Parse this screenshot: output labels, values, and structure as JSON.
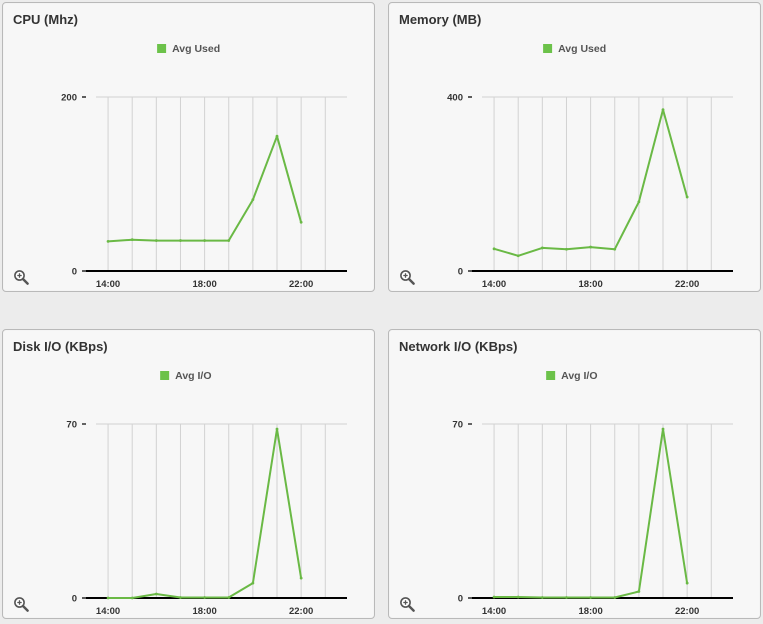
{
  "colors": {
    "series": "#6ab945",
    "legend_swatch": "#6cc24a",
    "grid": "#d2d2d2",
    "axis": "#000000"
  },
  "icons": {
    "zoom": "zoom-in-icon"
  },
  "chart_data": [
    {
      "type": "line",
      "title": "CPU (Mhz)",
      "x": [
        "14:00",
        "15:00",
        "16:00",
        "17:00",
        "18:00",
        "19:00",
        "20:00",
        "21:00",
        "22:00"
      ],
      "xticks": [
        "14:00",
        "18:00",
        "22:00"
      ],
      "xlim": [
        13.5,
        23.9
      ],
      "ylim": [
        0,
        200
      ],
      "yticks": [
        0,
        200
      ],
      "grid": true,
      "legend_position": "top-center",
      "series": [
        {
          "name": "Avg Used",
          "values": [
            34,
            36,
            35,
            35,
            35,
            35,
            82,
            155,
            56
          ]
        }
      ]
    },
    {
      "type": "line",
      "title": "Memory (MB)",
      "x": [
        "14:00",
        "15:00",
        "16:00",
        "17:00",
        "18:00",
        "19:00",
        "20:00",
        "21:00",
        "22:00"
      ],
      "xticks": [
        "14:00",
        "18:00",
        "22:00"
      ],
      "xlim": [
        13.5,
        23.9
      ],
      "ylim": [
        0,
        400
      ],
      "yticks": [
        0,
        400
      ],
      "grid": true,
      "legend_position": "top-center",
      "series": [
        {
          "name": "Avg Used",
          "values": [
            51,
            35,
            53,
            50,
            55,
            50,
            159,
            371,
            170
          ]
        }
      ]
    },
    {
      "type": "line",
      "title": "Disk I/O (KBps)",
      "x": [
        "14:00",
        "15:00",
        "16:00",
        "17:00",
        "18:00",
        "19:00",
        "20:00",
        "21:00",
        "22:00"
      ],
      "xticks": [
        "14:00",
        "18:00",
        "22:00"
      ],
      "xlim": [
        13.5,
        23.9
      ],
      "ylim": [
        0,
        70
      ],
      "yticks": [
        0,
        70
      ],
      "grid": true,
      "legend_position": "top-center",
      "series": [
        {
          "name": "Avg I/O",
          "values": [
            0,
            0,
            1.6,
            0.2,
            0.2,
            0.2,
            6,
            68,
            8
          ]
        }
      ]
    },
    {
      "type": "line",
      "title": "Network I/O (KBps)",
      "x": [
        "14:00",
        "15:00",
        "16:00",
        "17:00",
        "18:00",
        "19:00",
        "20:00",
        "21:00",
        "22:00"
      ],
      "xticks": [
        "14:00",
        "18:00",
        "22:00"
      ],
      "xlim": [
        13.5,
        23.9
      ],
      "ylim": [
        0,
        70
      ],
      "yticks": [
        0,
        70
      ],
      "grid": true,
      "legend_position": "top-center",
      "series": [
        {
          "name": "Avg I/O",
          "values": [
            0.4,
            0.4,
            0.2,
            0.2,
            0.2,
            0.2,
            2.6,
            68,
            6
          ]
        }
      ]
    }
  ]
}
